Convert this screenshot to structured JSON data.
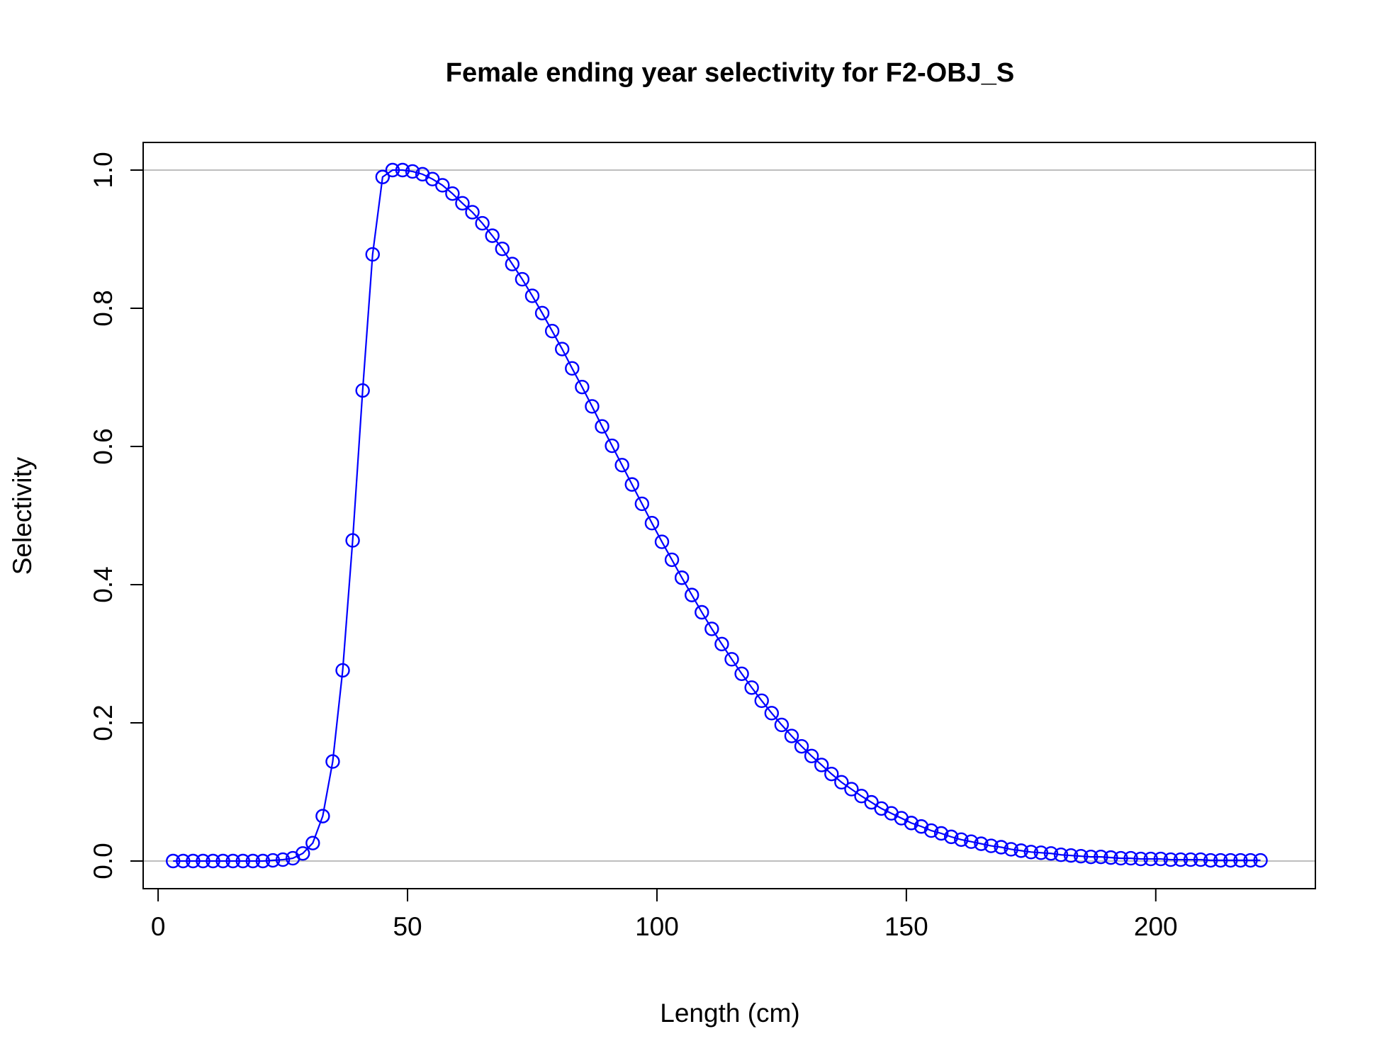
{
  "colors": {
    "series": "#0000ff",
    "reference_line": "#bebebe",
    "axis": "#000000",
    "background": "#ffffff"
  },
  "chart_data": {
    "type": "line",
    "title": "Female ending year selectivity for F2-OBJ_S",
    "xlabel": "Length (cm)",
    "ylabel": "Selectivity",
    "xlim": [
      -3,
      232
    ],
    "ylim": [
      -0.04,
      1.04
    ],
    "xticks": [
      0,
      50,
      100,
      150,
      200
    ],
    "xtick_labels": [
      "0",
      "50",
      "100",
      "150",
      "200"
    ],
    "yticks": [
      0.0,
      0.2,
      0.4,
      0.6,
      0.8,
      1.0
    ],
    "ytick_labels": [
      "0.0",
      "0.2",
      "0.4",
      "0.6",
      "0.8",
      "1.0"
    ],
    "reference_lines_y": [
      0,
      1
    ],
    "grid": false,
    "legend": "none",
    "markers": "open-circle",
    "series": [
      {
        "x": [
          3,
          5,
          7,
          9,
          11,
          13,
          15,
          17,
          19,
          21,
          23,
          25,
          27,
          29,
          31,
          33,
          35,
          37,
          39,
          41,
          43,
          45,
          47,
          49,
          51,
          53,
          55,
          57,
          59,
          61,
          63,
          65,
          67,
          69,
          71,
          73,
          75,
          77,
          79,
          81,
          83,
          85,
          87,
          89,
          91,
          93,
          95,
          97,
          99,
          101,
          103,
          105,
          107,
          109,
          111,
          113,
          115,
          117,
          119,
          121,
          123,
          125,
          127,
          129,
          131,
          133,
          135,
          137,
          139,
          141,
          143,
          145,
          147,
          149,
          151,
          153,
          155,
          157,
          159,
          161,
          163,
          165,
          167,
          169,
          171,
          173,
          175,
          177,
          179,
          181,
          183,
          185,
          187,
          189,
          191,
          193,
          195,
          197,
          199,
          201,
          203,
          205,
          207,
          209,
          211,
          213,
          215,
          217,
          219,
          221
        ],
        "y": [
          0,
          0,
          0,
          0,
          0,
          0,
          0,
          0,
          0,
          0,
          0.001,
          0.002,
          0.004,
          0.011,
          0.026,
          0.065,
          0.144,
          0.276,
          0.464,
          0.681,
          0.878,
          0.99,
          1.0,
          1.0,
          0.998,
          0.994,
          0.987,
          0.978,
          0.966,
          0.952,
          0.939,
          0.923,
          0.905,
          0.886,
          0.864,
          0.842,
          0.818,
          0.793,
          0.767,
          0.741,
          0.713,
          0.686,
          0.658,
          0.629,
          0.601,
          0.573,
          0.545,
          0.517,
          0.489,
          0.462,
          0.436,
          0.41,
          0.385,
          0.36,
          0.336,
          0.314,
          0.292,
          0.271,
          0.251,
          0.232,
          0.214,
          0.197,
          0.181,
          0.166,
          0.152,
          0.139,
          0.126,
          0.114,
          0.104,
          0.094,
          0.085,
          0.076,
          0.069,
          0.062,
          0.055,
          0.05,
          0.044,
          0.04,
          0.035,
          0.031,
          0.028,
          0.025,
          0.022,
          0.02,
          0.017,
          0.015,
          0.013,
          0.012,
          0.011,
          0.009,
          0.008,
          0.007,
          0.006,
          0.006,
          0.005,
          0.004,
          0.004,
          0.003,
          0.003,
          0.003,
          0.002,
          0.002,
          0.002,
          0.002,
          0.001,
          0.001,
          0.001,
          0.001,
          0.001,
          0.001
        ]
      }
    ]
  }
}
